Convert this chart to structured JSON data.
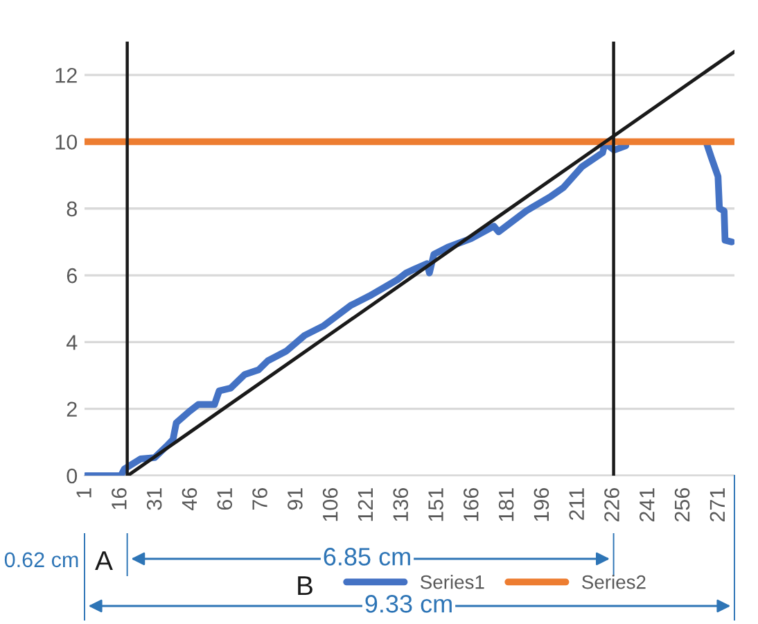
{
  "chart_data": {
    "type": "line",
    "xlim": [
      0.5,
      277.5
    ],
    "xticks": [
      1,
      16,
      31,
      46,
      61,
      76,
      91,
      106,
      121,
      136,
      151,
      166,
      181,
      196,
      211,
      226,
      241,
      256,
      271
    ],
    "ylim": [
      0,
      13
    ],
    "yticks": [
      0,
      2,
      4,
      6,
      8,
      10,
      12
    ],
    "grid": "y",
    "legend": "bottom",
    "series": [
      {
        "name": "Series1",
        "color": "#4472c4",
        "x": [
          1,
          16,
          17.5,
          24.4,
          30.4,
          35.3,
          38.2,
          39.6,
          45.1,
          49,
          55.9,
          57.9,
          62.8,
          68.8,
          74.7,
          78.6,
          86.5,
          94.3,
          102.2,
          114,
          121.9,
          133.7,
          137.6,
          141.6,
          146.5,
          147.5,
          149.4,
          155.3,
          165.2,
          175,
          177,
          188.8,
          198.7,
          204.6,
          212.5,
          221.3,
          222.3,
          226.2,
          231.2,
          240,
          258,
          265.6,
          267.6,
          270.5,
          271.1,
          273.1,
          273.5,
          276.4
        ],
        "values": [
          0,
          0,
          0.2,
          0.5,
          0.54,
          0.87,
          1.08,
          1.58,
          1.92,
          2.13,
          2.13,
          2.54,
          2.62,
          3.03,
          3.17,
          3.44,
          3.73,
          4.2,
          4.48,
          5.1,
          5.38,
          5.86,
          6.07,
          6.2,
          6.35,
          6.07,
          6.63,
          6.84,
          7.1,
          7.47,
          7.3,
          7.93,
          8.34,
          8.63,
          9.25,
          9.67,
          9.96,
          9.75,
          9.88,
          null,
          null,
          9.96,
          9.54,
          8.96,
          8.0,
          7.93,
          7.05,
          7.0
        ]
      },
      {
        "name": "Series2",
        "color": "#ed7d31",
        "x": [
          0.5,
          277.5
        ],
        "values": [
          10,
          10
        ]
      },
      {
        "color": "#1a1a1a",
        "x": [
          18.9,
          277.5
        ],
        "values": [
          0,
          12.7
        ]
      }
    ],
    "ref_lines": [
      {
        "axis": "x",
        "value": 18.7,
        "color": "#1a1a1a"
      },
      {
        "axis": "x",
        "value": 226,
        "color": "#1a1a1a"
      }
    ],
    "annotations": [
      "0.62 cm",
      "A",
      "6.85 cm",
      "B",
      "9.33 cm"
    ]
  }
}
